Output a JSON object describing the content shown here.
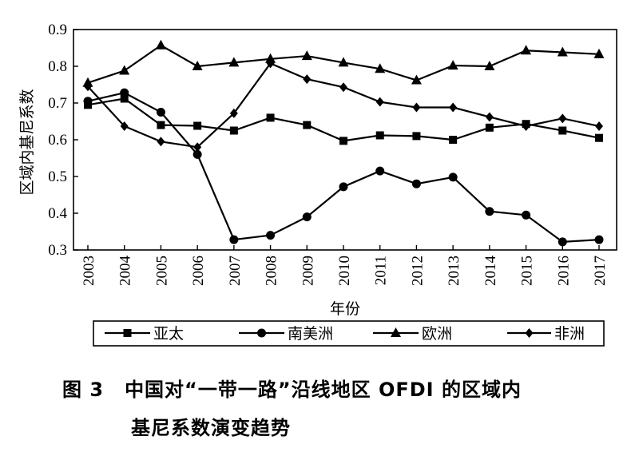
{
  "chart_data": {
    "type": "line",
    "xlabel": "年份",
    "ylabel": "区域内基尼系数",
    "ylim": [
      0.3,
      0.9
    ],
    "yticks": [
      "0.3",
      "0.4",
      "0.5",
      "0.6",
      "0.7",
      "0.8",
      "0.9"
    ],
    "categories": [
      "2003",
      "2004",
      "2005",
      "2006",
      "2007",
      "2008",
      "2009",
      "2010",
      "2011",
      "2012",
      "2013",
      "2014",
      "2015",
      "2016",
      "2017"
    ],
    "legend_placement": "bottom",
    "grid": false,
    "series": [
      {
        "name": "亚太",
        "marker": "square",
        "values": [
          0.695,
          0.712,
          0.64,
          0.638,
          0.625,
          0.66,
          0.64,
          0.597,
          0.612,
          0.61,
          0.6,
          0.633,
          0.643,
          0.625,
          0.605
        ]
      },
      {
        "name": "南美洲",
        "marker": "circle",
        "values": [
          0.705,
          0.728,
          0.675,
          0.56,
          0.328,
          0.34,
          0.39,
          0.472,
          0.515,
          0.48,
          0.498,
          0.405,
          0.395,
          0.322,
          0.328
        ]
      },
      {
        "name": "欧洲",
        "marker": "triangle",
        "values": [
          0.755,
          0.788,
          0.857,
          0.8,
          0.81,
          0.82,
          0.828,
          0.81,
          0.793,
          0.762,
          0.802,
          0.8,
          0.843,
          0.838,
          0.833
        ]
      },
      {
        "name": "非洲",
        "marker": "diamond",
        "values": [
          0.745,
          0.637,
          0.595,
          0.58,
          0.672,
          0.808,
          0.765,
          0.743,
          0.703,
          0.688,
          0.688,
          0.662,
          0.637,
          0.658,
          0.637
        ]
      }
    ]
  },
  "caption": {
    "fig_no": "图 3",
    "line1": "中国对“一带一路”沿线地区 OFDI 的区域内",
    "line2": "基尼系数演变趋势"
  }
}
